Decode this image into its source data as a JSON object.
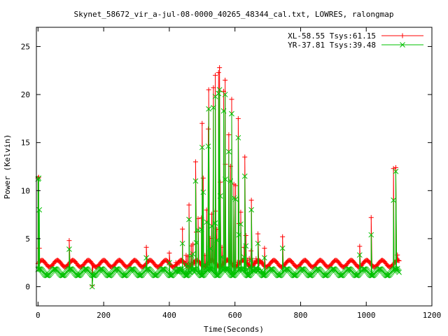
{
  "chart_data": {
    "type": "scatter",
    "title": "Skynet_58672_vir_a-jul-08-0000_40265_48344_cal.txt, LOWRES, ralongmap",
    "xlabel": "Time(Seconds)",
    "ylabel": "Power (Kelvin)",
    "xlim": [
      -5,
      1200
    ],
    "ylim": [
      -2,
      27
    ],
    "xticks": [
      0,
      200,
      400,
      600,
      800,
      1000,
      1200
    ],
    "yticks": [
      0,
      5,
      10,
      15,
      20,
      25
    ],
    "grid": false,
    "legend_position": "top-right",
    "series": [
      {
        "name": "XL-58.55 Tsys:61.15",
        "color": "#ff0000",
        "marker": "plus",
        "baseline": 2.4,
        "peak": [
          [
            0,
            11.3
          ],
          [
            2,
            11.4
          ],
          [
            4,
            4.0
          ],
          [
            165,
            0.1
          ],
          [
            95,
            4.8
          ],
          [
            330,
            4.1
          ],
          [
            400,
            3.5
          ],
          [
            440,
            6.0
          ],
          [
            460,
            8.5
          ],
          [
            480,
            13.0
          ],
          [
            500,
            17.0
          ],
          [
            520,
            20.5
          ],
          [
            540,
            22.0
          ],
          [
            553,
            22.8
          ],
          [
            570,
            21.5
          ],
          [
            590,
            19.5
          ],
          [
            610,
            17.5
          ],
          [
            630,
            13.5
          ],
          [
            650,
            9.0
          ],
          [
            670,
            5.5
          ],
          [
            690,
            4.0
          ],
          [
            745,
            5.2
          ],
          [
            980,
            4.2
          ],
          [
            1015,
            7.2
          ],
          [
            1083,
            12.3
          ],
          [
            1090,
            12.4
          ],
          [
            1095,
            3.3
          ]
        ]
      },
      {
        "name": "YR-37.81 Tsys:39.48",
        "color": "#00c000",
        "marker": "cross",
        "baseline": 1.5,
        "peak": [
          [
            0,
            11.2
          ],
          [
            2,
            11.3
          ],
          [
            4,
            8.0
          ],
          [
            165,
            0.0
          ],
          [
            95,
            3.9
          ],
          [
            330,
            3.0
          ],
          [
            400,
            2.5
          ],
          [
            440,
            4.5
          ],
          [
            460,
            7.0
          ],
          [
            480,
            11.0
          ],
          [
            500,
            14.5
          ],
          [
            520,
            18.5
          ],
          [
            540,
            19.8
          ],
          [
            553,
            20.5
          ],
          [
            570,
            20.0
          ],
          [
            590,
            18.0
          ],
          [
            610,
            15.5
          ],
          [
            630,
            11.5
          ],
          [
            650,
            8.0
          ],
          [
            670,
            4.5
          ],
          [
            690,
            3.0
          ],
          [
            745,
            4.0
          ],
          [
            980,
            3.3
          ],
          [
            1015,
            5.4
          ],
          [
            1083,
            9.0
          ],
          [
            1090,
            12.0
          ],
          [
            1095,
            1.9
          ]
        ]
      }
    ]
  }
}
